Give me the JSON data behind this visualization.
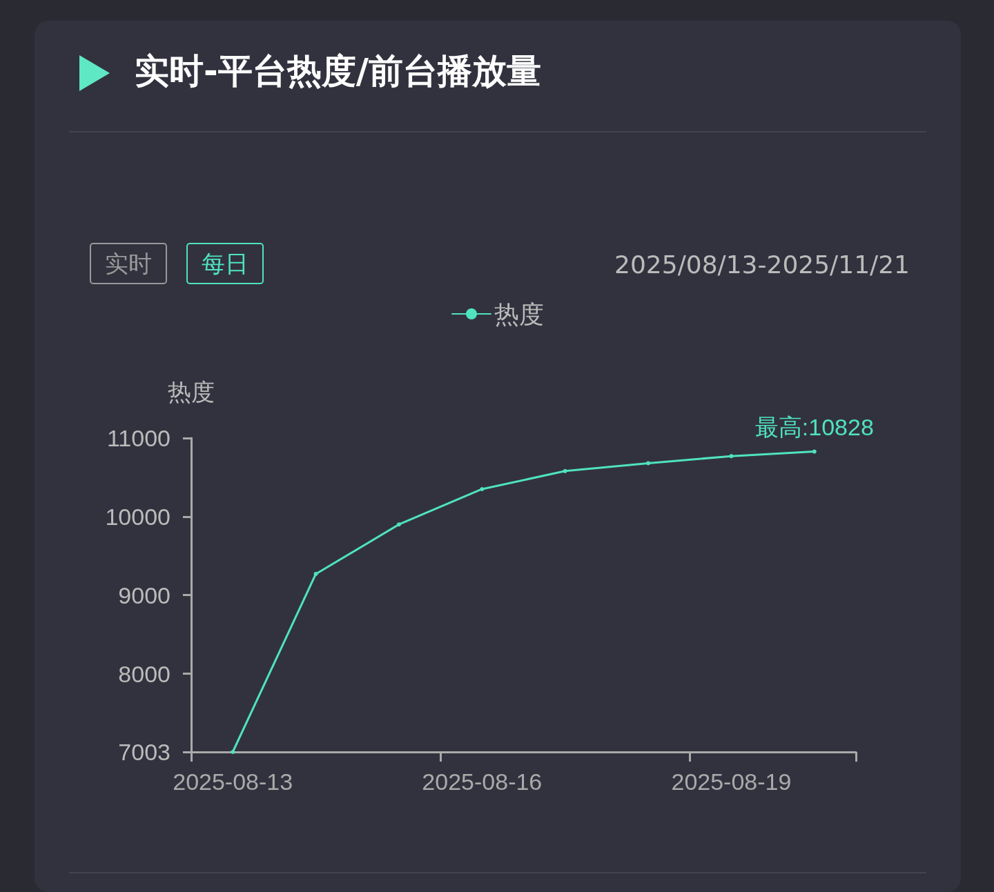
{
  "chart_data": {
    "type": "line",
    "title": "实时-平台热度/前台播放量",
    "subtitle": "2025/08/13-2025/11/21",
    "ylabel": "热度",
    "annotations": [
      "实时",
      "每日",
      {
        "text": "最高:10828",
        "y": 10828
      }
    ],
    "categories": [
      "2025-08-13",
      null,
      null,
      "2025-08-16",
      null,
      null,
      "2025-08-19",
      null
    ],
    "series": [
      {
        "name": "热度",
        "color": "#4fe3bf",
        "values": [
          7003,
          9270,
          9900,
          10350,
          10580,
          10680,
          10770,
          10828
        ]
      }
    ],
    "ylim": [
      7003,
      11000
    ],
    "yticks": [
      7003,
      8000,
      9000,
      10000,
      11000
    ],
    "grid": false,
    "legend": "top",
    "marker": "circle",
    "line_style": "solid"
  }
}
